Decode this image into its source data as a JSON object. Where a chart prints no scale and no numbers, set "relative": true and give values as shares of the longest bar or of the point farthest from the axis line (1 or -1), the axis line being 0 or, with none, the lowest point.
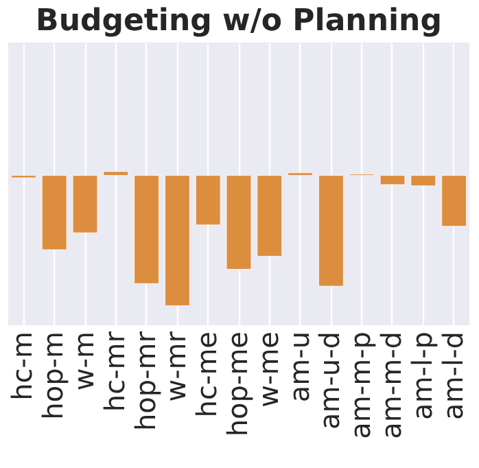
{
  "chart_data": {
    "type": "bar",
    "title": "Budgeting w/o Planning",
    "relative": true,
    "grid": "x",
    "color": "#dd8d3e",
    "categories": [
      "hc-m",
      "hop-m",
      "w-m",
      "hc-mr",
      "hop-mr",
      "w-mr",
      "hc-me",
      "hop-me",
      "w-me",
      "am-u",
      "am-u-d",
      "am-m-p",
      "am-m-d",
      "am-l-p",
      "am-l-d"
    ],
    "values": [
      -0.018,
      -0.57,
      -0.44,
      0.03,
      -0.83,
      -1,
      -0.38,
      -0.72,
      -0.62,
      0.02,
      -0.85,
      0.01,
      -0.07,
      -0.08,
      -0.39
    ]
  }
}
